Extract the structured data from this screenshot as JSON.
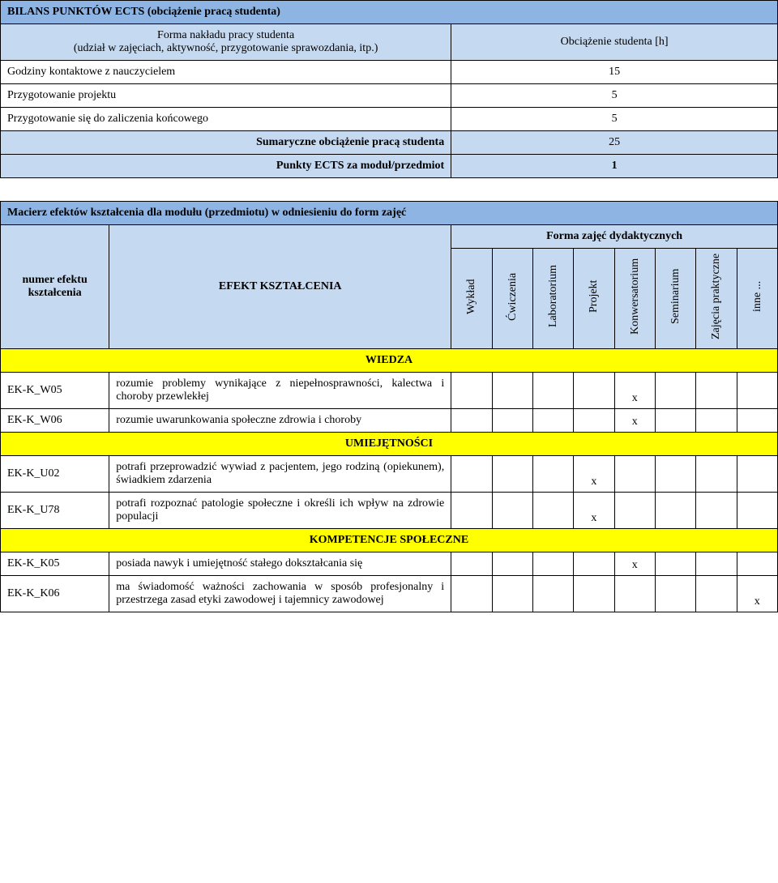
{
  "ects": {
    "title": "BILANS PUNKTÓW ECTS  (obciążenie pracą studenta)",
    "form_label": "Forma nakładu pracy studenta\n(udział w zajęciach, aktywność, przygotowanie sprawozdania, itp.)",
    "load_label": "Obciążenie studenta [h]",
    "rows": [
      {
        "label": "Godziny kontaktowe z nauczycielem",
        "value": "15"
      },
      {
        "label": "Przygotowanie projektu",
        "value": "5"
      },
      {
        "label": "Przygotowanie się do zaliczenia końcowego",
        "value": "5"
      }
    ],
    "sum_label": "Sumaryczne obciążenie pracą studenta",
    "sum_value": "25",
    "pts_label": "Punkty ECTS za moduł/przedmiot",
    "pts_value": "1"
  },
  "matrix": {
    "title": "Macierz efektów kształcenia dla modułu (przedmiotu) w odniesieniu do form zajęć",
    "forms_label": "Forma zajęć dydaktycznych",
    "col_effect_num": "numer efektu kształcenia",
    "col_effect": "EFEKT KSZTAŁCENIA",
    "cols": [
      "Wykład",
      "Ćwiczenia",
      "Laboratorium",
      "Projekt",
      "Konwersatorium",
      "Seminarium",
      "Zajęcia praktyczne",
      "inne ..."
    ],
    "sections": [
      {
        "name": "WIEDZA",
        "rows": [
          {
            "code": "EK-K_W05",
            "desc": "rozumie problemy wynikające z niepełnosprawności, kalectwa i choroby przewlekłej",
            "marks": [
              "",
              "",
              "",
              "",
              "x",
              "",
              "",
              ""
            ]
          },
          {
            "code": "EK-K_W06",
            "desc": "rozumie uwarunkowania społeczne zdrowia i choroby",
            "marks": [
              "",
              "",
              "",
              "",
              "x",
              "",
              "",
              ""
            ]
          }
        ]
      },
      {
        "name": "UMIEJĘTNOŚCI",
        "rows": [
          {
            "code": "EK-K_U02",
            "desc": "potrafi przeprowadzić wywiad z pacjentem, jego rodziną (opiekunem), świadkiem zdarzenia",
            "marks": [
              "",
              "",
              "",
              "x",
              "",
              "",
              "",
              ""
            ]
          },
          {
            "code": "EK-K_U78",
            "desc": "potrafi rozpoznać patologie społeczne i określi ich wpływ na zdrowie populacji",
            "marks": [
              "",
              "",
              "",
              "x",
              "",
              "",
              "",
              ""
            ]
          }
        ]
      },
      {
        "name": "KOMPETENCJE SPOŁECZNE",
        "rows": [
          {
            "code": "EK-K_K05",
            "desc": "posiada nawyk i umiejętność stałego dokształcania się",
            "marks": [
              "",
              "",
              "",
              "",
              "x",
              "",
              "",
              ""
            ]
          },
          {
            "code": "EK-K_K06",
            "desc": "ma świadomość ważności zachowania w sposób profesjonalny i przestrzega zasad etyki zawodowej i tajemnicy zawodowej",
            "marks": [
              "",
              "",
              "",
              "",
              "",
              "",
              "",
              "x"
            ]
          }
        ]
      }
    ]
  }
}
